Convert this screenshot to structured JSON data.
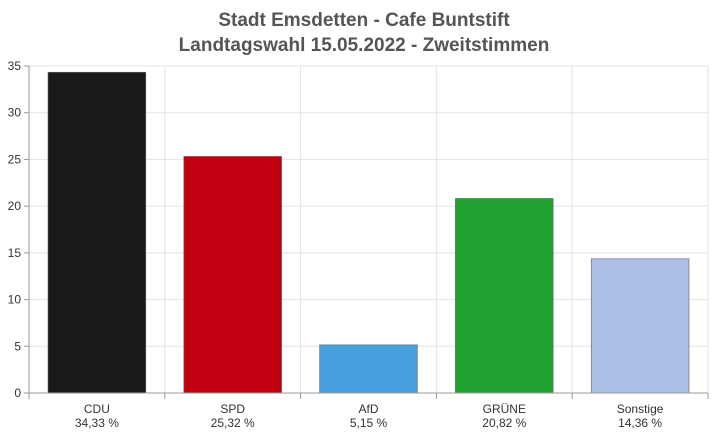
{
  "chart_data": {
    "type": "bar",
    "title": "Stadt Emsdetten - Cafe Buntstift",
    "subtitle": "Landtagswahl 15.05.2022  - Zweitstimmen",
    "categories": [
      "CDU",
      "SPD",
      "AfD",
      "GRÜNE",
      "Sonstige"
    ],
    "value_labels": [
      "34,33 %",
      "25,32 %",
      "5,15 %",
      "20,82 %",
      "14,36 %"
    ],
    "values": [
      34.33,
      25.32,
      5.15,
      20.82,
      14.36
    ],
    "colors": [
      "#1a1a1a",
      "#c10012",
      "#47a0dd",
      "#21a331",
      "#acbee6"
    ],
    "ylim": [
      0,
      35
    ],
    "yticks": [
      0,
      5,
      10,
      15,
      20,
      25,
      30,
      35
    ],
    "grid": true,
    "legend": "none"
  }
}
